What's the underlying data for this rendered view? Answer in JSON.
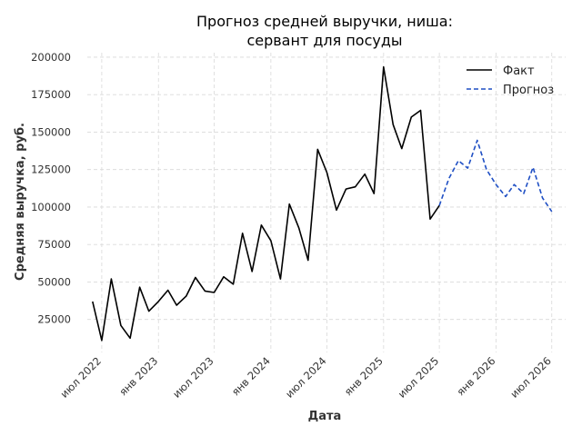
{
  "chart_data": {
    "type": "line",
    "title_line1": "Прогноз средней выручки, ниша:",
    "title_line2": "сервант для посуды",
    "xlabel": "Дата",
    "ylabel": "Средняя выручка, руб.",
    "ylim": [
      3000,
      203000
    ],
    "xlim": [
      "2022-05-15",
      "2026-08-15"
    ],
    "yticks": [
      25000,
      50000,
      75000,
      100000,
      125000,
      150000,
      175000,
      200000
    ],
    "xticks": [
      {
        "date": "2022-07-01",
        "label": "июл 2022"
      },
      {
        "date": "2023-01-01",
        "label": "янв 2023"
      },
      {
        "date": "2023-07-01",
        "label": "июл 2023"
      },
      {
        "date": "2024-01-01",
        "label": "янв 2024"
      },
      {
        "date": "2024-07-01",
        "label": "июл 2024"
      },
      {
        "date": "2025-01-01",
        "label": "янв 2025"
      },
      {
        "date": "2025-07-01",
        "label": "июл 2025"
      },
      {
        "date": "2026-01-01",
        "label": "янв 2026"
      },
      {
        "date": "2026-07-01",
        "label": "июл 2026"
      }
    ],
    "grid": true,
    "legend_position": "top-right",
    "series": [
      {
        "name": "Факт",
        "color": "#000000",
        "style": "solid",
        "points": [
          {
            "x": "2022-06-01",
            "y": 37000
          },
          {
            "x": "2022-07-01",
            "y": 11000
          },
          {
            "x": "2022-08-01",
            "y": 52000
          },
          {
            "x": "2022-09-01",
            "y": 21000
          },
          {
            "x": "2022-10-01",
            "y": 12500
          },
          {
            "x": "2022-11-01",
            "y": 46500
          },
          {
            "x": "2022-12-01",
            "y": 30500
          },
          {
            "x": "2023-01-01",
            "y": 37000
          },
          {
            "x": "2023-02-01",
            "y": 44500
          },
          {
            "x": "2023-03-01",
            "y": 34500
          },
          {
            "x": "2023-04-01",
            "y": 40500
          },
          {
            "x": "2023-05-01",
            "y": 53000
          },
          {
            "x": "2023-06-01",
            "y": 44000
          },
          {
            "x": "2023-07-01",
            "y": 43000
          },
          {
            "x": "2023-08-01",
            "y": 53500
          },
          {
            "x": "2023-09-01",
            "y": 48500
          },
          {
            "x": "2023-10-01",
            "y": 82500
          },
          {
            "x": "2023-11-01",
            "y": 57000
          },
          {
            "x": "2023-12-01",
            "y": 88000
          },
          {
            "x": "2024-01-01",
            "y": 77500
          },
          {
            "x": "2024-02-01",
            "y": 52000
          },
          {
            "x": "2024-03-01",
            "y": 102000
          },
          {
            "x": "2024-04-01",
            "y": 86000
          },
          {
            "x": "2024-05-01",
            "y": 64500
          },
          {
            "x": "2024-06-01",
            "y": 138500
          },
          {
            "x": "2024-07-01",
            "y": 123000
          },
          {
            "x": "2024-08-01",
            "y": 98000
          },
          {
            "x": "2024-09-01",
            "y": 112000
          },
          {
            "x": "2024-10-01",
            "y": 113500
          },
          {
            "x": "2024-11-01",
            "y": 122000
          },
          {
            "x": "2024-12-01",
            "y": 109000
          },
          {
            "x": "2025-01-01",
            "y": 193500
          },
          {
            "x": "2025-02-01",
            "y": 155000
          },
          {
            "x": "2025-03-01",
            "y": 139000
          },
          {
            "x": "2025-04-01",
            "y": 160000
          },
          {
            "x": "2025-05-01",
            "y": 164500
          },
          {
            "x": "2025-06-01",
            "y": 92000
          },
          {
            "x": "2025-07-01",
            "y": 101000
          }
        ]
      },
      {
        "name": "Прогноз",
        "color": "#1f4fc4",
        "style": "dashed",
        "points": [
          {
            "x": "2025-07-01",
            "y": 101000
          },
          {
            "x": "2025-08-01",
            "y": 119000
          },
          {
            "x": "2025-09-01",
            "y": 131000
          },
          {
            "x": "2025-10-01",
            "y": 126000
          },
          {
            "x": "2025-11-01",
            "y": 144500
          },
          {
            "x": "2025-12-01",
            "y": 125000
          },
          {
            "x": "2026-01-01",
            "y": 115000
          },
          {
            "x": "2026-02-01",
            "y": 107000
          },
          {
            "x": "2026-03-01",
            "y": 115000
          },
          {
            "x": "2026-04-01",
            "y": 109000
          },
          {
            "x": "2026-05-01",
            "y": 126500
          },
          {
            "x": "2026-06-01",
            "y": 106000
          },
          {
            "x": "2026-07-01",
            "y": 97000
          }
        ]
      }
    ]
  }
}
